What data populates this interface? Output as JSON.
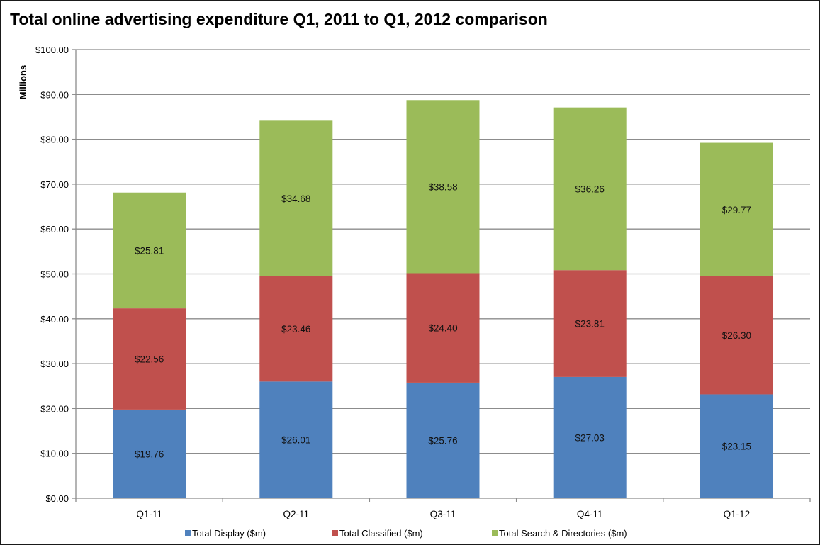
{
  "chart_data": {
    "type": "bar",
    "stacked": true,
    "title": "Total online advertising expenditure Q1, 2011 to Q1, 2012 comparison",
    "xlabel": "",
    "ylabel": "Millions",
    "ylim": [
      0,
      100
    ],
    "yticks": [
      0,
      10,
      20,
      30,
      40,
      50,
      60,
      70,
      80,
      90,
      100
    ],
    "ytick_labels": [
      "$0.00",
      "$10.00",
      "$20.00",
      "$30.00",
      "$40.00",
      "$50.00",
      "$60.00",
      "$70.00",
      "$80.00",
      "$90.00",
      "$100.00"
    ],
    "grid": true,
    "legend_position": "bottom",
    "categories": [
      "Q1-11",
      "Q2-11",
      "Q3-11",
      "Q4-11",
      "Q1-12"
    ],
    "series": [
      {
        "name": "Total Display ($m)",
        "color": "#4f81bd",
        "values": [
          19.76,
          26.01,
          25.76,
          27.03,
          23.15
        ],
        "labels": [
          "$19.76",
          "$26.01",
          "$25.76",
          "$27.03",
          "$23.15"
        ]
      },
      {
        "name": "Total Classified ($m)",
        "color": "#c0504d",
        "values": [
          22.56,
          23.46,
          24.4,
          23.81,
          26.3
        ],
        "labels": [
          "$22.56",
          "$23.46",
          "$24.40",
          "$23.81",
          "$26.30"
        ]
      },
      {
        "name": "Total Search & Directories ($m)",
        "color": "#9bbb59",
        "values": [
          25.81,
          34.68,
          38.58,
          36.26,
          29.77
        ],
        "labels": [
          "$25.81",
          "$34.68",
          "$38.58",
          "$36.26",
          "$29.77"
        ]
      }
    ]
  }
}
